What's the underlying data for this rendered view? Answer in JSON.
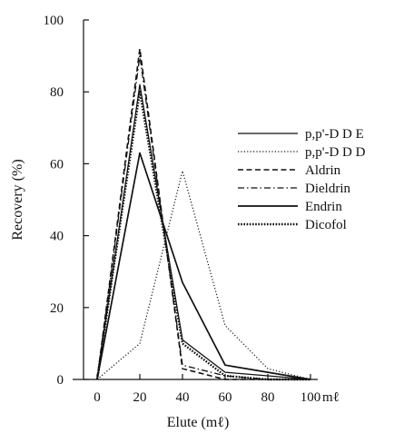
{
  "chart_data": {
    "type": "line",
    "xlabel": "Elute (mℓ)",
    "ylabel": "Recovery (%)",
    "x_unit_label": "mℓ",
    "xlim": [
      0,
      100
    ],
    "ylim": [
      0,
      100
    ],
    "x_ticks": [
      "0",
      "20",
      "40",
      "60",
      "80",
      "100"
    ],
    "y_ticks": [
      "0",
      "20",
      "40",
      "60",
      "80",
      "100"
    ],
    "legend_position": "right",
    "grid": false,
    "x": [
      0,
      20,
      40,
      60,
      80,
      100
    ],
    "series": [
      {
        "name": "p,p'-D D E",
        "style": "solid-thin",
        "values": [
          0,
          82,
          11,
          2,
          1,
          0
        ]
      },
      {
        "name": "p,p'-D D D",
        "style": "dotted-fine",
        "values": [
          0,
          10,
          58,
          15,
          3,
          0
        ]
      },
      {
        "name": "Aldrin",
        "style": "dashed",
        "values": [
          0,
          92,
          3,
          0,
          0,
          0
        ]
      },
      {
        "name": "Dieldrin",
        "style": "dash-dot",
        "values": [
          0,
          90,
          4,
          1,
          0,
          0
        ]
      },
      {
        "name": "Endrin",
        "style": "solid",
        "values": [
          0,
          63,
          27,
          4,
          2,
          0
        ]
      },
      {
        "name": "Dicofol",
        "style": "dotted-heavy",
        "values": [
          0,
          80,
          10,
          1,
          0,
          0
        ]
      }
    ]
  }
}
